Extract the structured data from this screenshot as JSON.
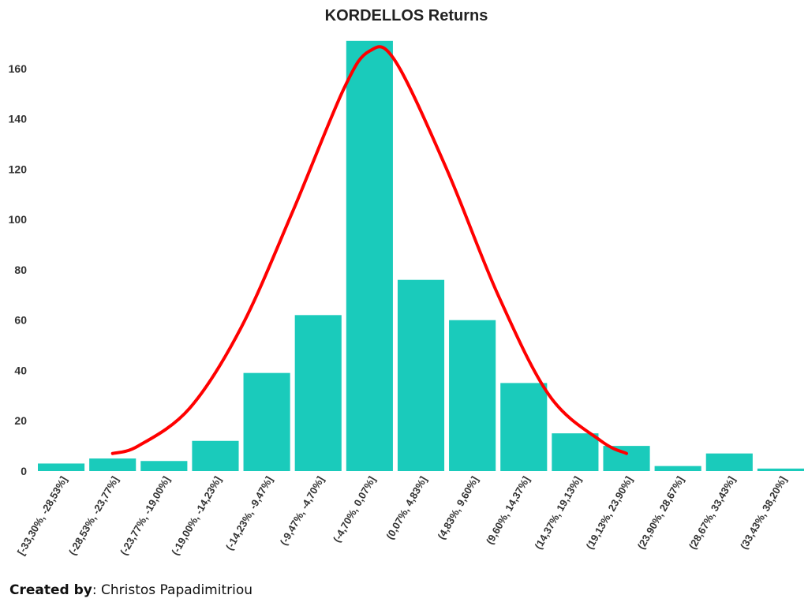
{
  "chart_data": {
    "type": "bar",
    "title": "KORDELLOS Returns",
    "xlabel": "",
    "ylabel": "",
    "ylim": [
      0,
      170
    ],
    "yticks": [
      0,
      20,
      40,
      60,
      80,
      100,
      120,
      140,
      160
    ],
    "categories": [
      "[-33,30%, -28,53%]",
      "(-28,53%, -23,77%]",
      "(-23,77%, -19,00%]",
      "(-19,00%, -14,23%]",
      "(-14,23%, -9,47%]",
      "(-9,47%, -4,70%]",
      "(-4,70%, 0,07%]",
      "(0,07%, 4,83%]",
      "(4,83%, 9,60%]",
      "(9,60%, 14,37%]",
      "(14,37%, 19,13%]",
      "(19,13%, 23,90%]",
      "(23,90%, 28,67%]",
      "(28,67%, 33,43%]",
      "(33,43%, 38,20%]"
    ],
    "values": [
      3,
      5,
      4,
      12,
      39,
      62,
      171,
      76,
      60,
      35,
      15,
      10,
      2,
      7,
      1
    ],
    "normal_curve": {
      "x_index": [
        1.5,
        2.0,
        3.0,
        4.0,
        5.0,
        6.0,
        6.5,
        7.0,
        8.0,
        9.0,
        10.0,
        11.0,
        11.5
      ],
      "values": [
        7,
        10,
        25,
        57,
        103,
        152,
        167,
        163,
        120,
        70,
        30,
        12,
        7
      ]
    },
    "bar_color": "#1ACBBB",
    "curve_color": "#FF0000",
    "grid": false,
    "legend": "none"
  },
  "footer": {
    "credit_label": "Created by",
    "credit_sep": ": ",
    "credit_name": "Christos Papadimitriou"
  }
}
